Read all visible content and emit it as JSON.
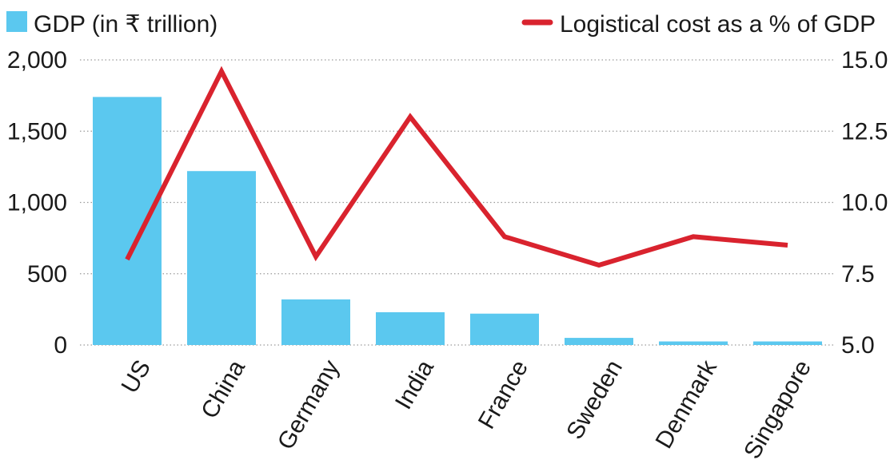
{
  "chart_data": {
    "type": "bar",
    "categories": [
      "US",
      "China",
      "Germany",
      "India",
      "France",
      "Sweden",
      "Denmark",
      "Singapore"
    ],
    "series": [
      {
        "name": "GDP (in ₹ trillion)",
        "type": "bar",
        "axis": "left",
        "color": "#5bc8ef",
        "values": [
          1740,
          1220,
          320,
          230,
          220,
          50,
          25,
          25
        ]
      },
      {
        "name": "Logistical cost as a % of GDP",
        "type": "line",
        "axis": "right",
        "color": "#d9232e",
        "values": [
          8.0,
          14.6,
          8.1,
          13.0,
          8.8,
          7.8,
          8.8,
          8.5
        ]
      }
    ],
    "y_left": {
      "ylim": [
        0,
        2000
      ],
      "ticks": [
        "0",
        "500",
        "1,000",
        "1,500",
        "2,000"
      ],
      "tick_values": [
        0,
        500,
        1000,
        1500,
        2000
      ]
    },
    "y_right": {
      "ylim": [
        5.0,
        15.0
      ],
      "ticks": [
        "5.0",
        "7.5",
        "10.0",
        "12.5",
        "15.0"
      ],
      "tick_values": [
        5.0,
        7.5,
        10.0,
        12.5,
        15.0
      ]
    },
    "grid": "dotted-horizontal",
    "legend_placement": "top"
  }
}
